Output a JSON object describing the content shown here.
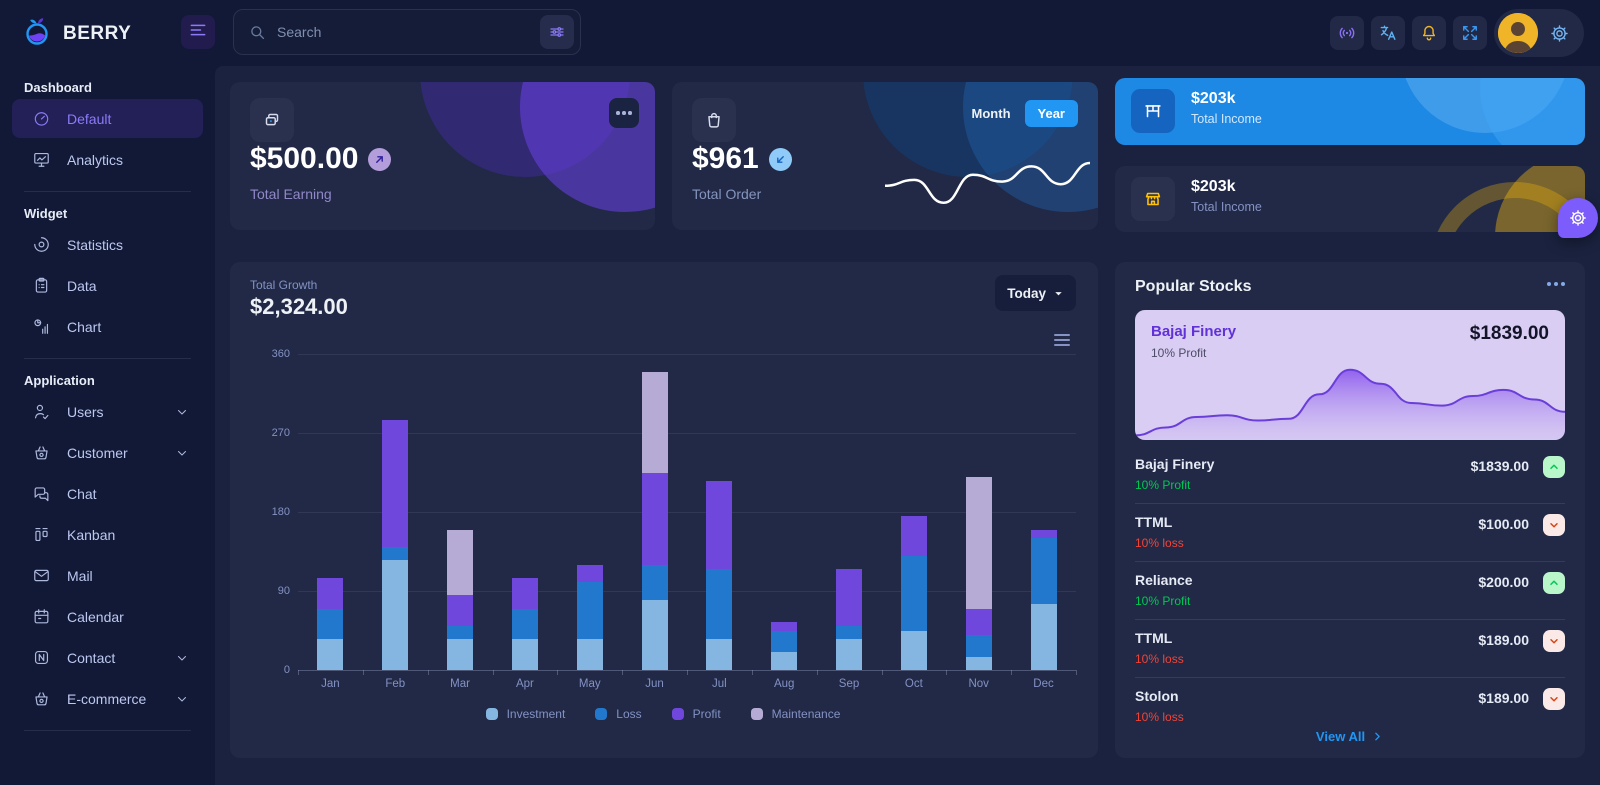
{
  "brand": {
    "name": "BERRY"
  },
  "topbar": {
    "search_placeholder": "Search"
  },
  "sidebar": {
    "sections": [
      {
        "title": "Dashboard",
        "items": [
          {
            "label": "Default",
            "icon": "dashboard",
            "active": true
          },
          {
            "label": "Analytics",
            "icon": "analytics"
          }
        ]
      },
      {
        "title": "Widget",
        "items": [
          {
            "label": "Statistics",
            "icon": "statistics"
          },
          {
            "label": "Data",
            "icon": "data"
          },
          {
            "label": "Chart",
            "icon": "chart"
          }
        ]
      },
      {
        "title": "Application",
        "items": [
          {
            "label": "Users",
            "icon": "users",
            "expandable": true
          },
          {
            "label": "Customer",
            "icon": "basket",
            "expandable": true
          },
          {
            "label": "Chat",
            "icon": "chat"
          },
          {
            "label": "Kanban",
            "icon": "kanban"
          },
          {
            "label": "Mail",
            "icon": "mail"
          },
          {
            "label": "Calendar",
            "icon": "calendar"
          },
          {
            "label": "Contact",
            "icon": "contact",
            "expandable": true
          },
          {
            "label": "E-commerce",
            "icon": "basket",
            "expandable": true
          }
        ]
      }
    ]
  },
  "cards": {
    "earning": {
      "value": "$500.00",
      "label": "Total Earning"
    },
    "order": {
      "value": "$961",
      "label": "Total Order",
      "month_label": "Month",
      "year_label": "Year"
    },
    "income_blue": {
      "value": "$203k",
      "label": "Total Income"
    },
    "income_dark": {
      "value": "$203k",
      "label": "Total Income"
    }
  },
  "growth": {
    "label": "Total Growth",
    "value": "$2,324.00",
    "range_label": "Today"
  },
  "chart_data": [
    {
      "id": "total-growth",
      "type": "bar",
      "stacked": true,
      "title": "Total Growth",
      "categories": [
        "Jan",
        "Feb",
        "Mar",
        "Apr",
        "May",
        "Jun",
        "Jul",
        "Aug",
        "Sep",
        "Oct",
        "Nov",
        "Dec"
      ],
      "series": [
        {
          "name": "Investment",
          "color": "#85b6e2",
          "values": [
            35,
            125,
            35,
            35,
            35,
            80,
            35,
            20,
            35,
            45,
            15,
            75
          ]
        },
        {
          "name": "Loss",
          "color": "#2178cd",
          "values": [
            35,
            15,
            15,
            35,
            65,
            40,
            80,
            25,
            15,
            85,
            25,
            75
          ]
        },
        {
          "name": "Profit",
          "color": "#6f47dd",
          "values": [
            35,
            145,
            35,
            35,
            20,
            105,
            100,
            10,
            65,
            45,
            30,
            10
          ]
        },
        {
          "name": "Maintenance",
          "color": "#b6abd4",
          "values": [
            0,
            0,
            75,
            0,
            0,
            115,
            0,
            0,
            0,
            0,
            150,
            0
          ]
        }
      ],
      "ylim": [
        0,
        360
      ],
      "yticks": [
        0,
        90,
        180,
        270,
        360
      ],
      "grid": true,
      "legend_position": "bottom"
    },
    {
      "id": "total-order-sparkline",
      "type": "line",
      "color": "#ffffff",
      "values": [
        25,
        32,
        5,
        38,
        30,
        48,
        27,
        52
      ]
    },
    {
      "id": "bajaj-finery-area",
      "type": "area",
      "color": "#6a3ed8",
      "values": [
        3,
        12,
        24,
        26,
        20,
        22,
        50,
        78,
        62,
        40,
        37,
        48,
        55,
        44,
        30
      ]
    }
  ],
  "stocks": {
    "title": "Popular Stocks",
    "featured": {
      "name": "Bajaj Finery",
      "sub": "10% Profit",
      "price": "$1839.00"
    },
    "items": [
      {
        "name": "Bajaj Finery",
        "price": "$1839.00",
        "sub": "10% Profit",
        "trend": "up"
      },
      {
        "name": "TTML",
        "price": "$100.00",
        "sub": "10% loss",
        "trend": "down"
      },
      {
        "name": "Reliance",
        "price": "$200.00",
        "sub": "10% Profit",
        "trend": "up"
      },
      {
        "name": "TTML",
        "price": "$189.00",
        "sub": "10% loss",
        "trend": "down"
      },
      {
        "name": "Stolon",
        "price": "$189.00",
        "sub": "10% loss",
        "trend": "down"
      }
    ],
    "view_all": "View All"
  },
  "colors": {
    "accent_purple": "#7c4dff",
    "accent_blue": "#2196f3",
    "accent_light_blue": "#90caf9",
    "accent_yellow": "#ffc107",
    "success_text": "#00c853",
    "success_chip_bg": "#b9f6ca",
    "error_text": "#f44336",
    "error_chip_bg": "#fbe9e7",
    "error_chip_icon": "#d84315",
    "bg_outer": "#111936",
    "bg_panel": "#1a223f",
    "bg_card": "#212946",
    "featured_card_bg": "#d9cdf3"
  }
}
